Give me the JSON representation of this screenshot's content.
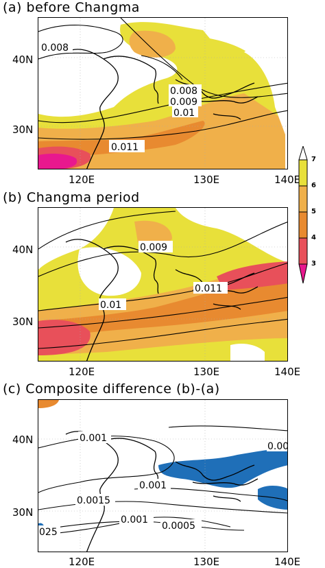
{
  "panels": [
    {
      "title": "(a) before Changma",
      "lat_labels": [
        "40N",
        "30N"
      ],
      "lon_labels": [
        "120E",
        "130E",
        "140E"
      ],
      "contour_labels": [
        "0.008",
        "0.008",
        "0.009",
        "0.01",
        "0.011"
      ]
    },
    {
      "title": "(b) Changma period",
      "lat_labels": [
        "40N",
        "30N"
      ],
      "lon_labels": [
        "120E",
        "130E",
        "140E"
      ],
      "contour_labels": [
        "0.009",
        "0.011",
        "0.01"
      ]
    },
    {
      "title": "(c) Composite difference (b)-(a)",
      "lat_labels": [
        "40N",
        "30N"
      ],
      "lon_labels": [
        "120E",
        "130E",
        "140E"
      ],
      "contour_labels": [
        "0.001",
        "0.00",
        "0.001",
        "0.0015",
        "025",
        "0.001",
        "0.0005"
      ]
    }
  ],
  "colorbar": {
    "labels": [
      "7",
      "6",
      "5",
      "4",
      "3"
    ],
    "colors": [
      "#ffffff",
      "#e8e03a",
      "#f0b04a",
      "#e88a30",
      "#e8505a",
      "#e8188e"
    ]
  },
  "colors": {
    "yellow": "#e8e03a",
    "light_orange": "#f0b04a",
    "orange": "#e88a30",
    "red": "#e8505a",
    "magenta": "#e8188e",
    "blue": "#1f6fb8"
  }
}
